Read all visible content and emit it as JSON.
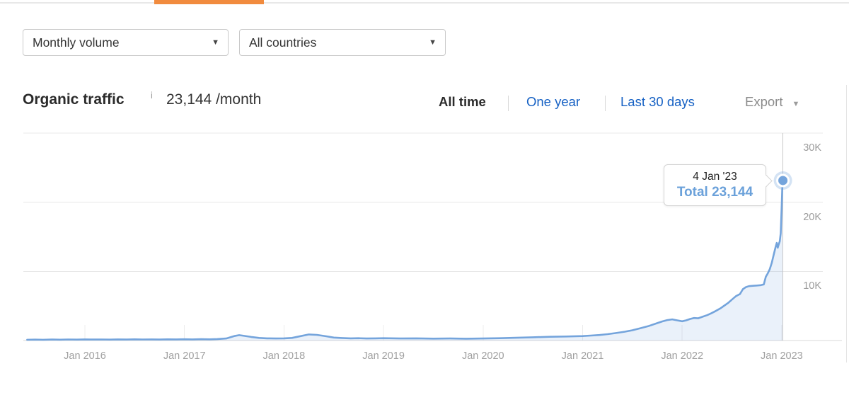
{
  "top_tab_indicator": {
    "color": "#f18b3e"
  },
  "filters": {
    "volume_dropdown": {
      "value": "Monthly volume",
      "caret": "▼"
    },
    "country_dropdown": {
      "value": "All countries",
      "caret": "▼"
    }
  },
  "header": {
    "title": "Organic traffic",
    "info": "i",
    "metric": "23,144 /month"
  },
  "range_tabs": {
    "all_time": "All time",
    "one_year": "One year",
    "last_30_days": "Last 30 days",
    "export": "Export",
    "export_caret": "▼"
  },
  "tooltip": {
    "date": "4 Jan '23",
    "total": "Total 23,144"
  },
  "chart_data": {
    "type": "area",
    "series_name": "Organic traffic total",
    "x_unit": "decimal_year",
    "ylim": [
      0,
      30000
    ],
    "grid": true,
    "legend": false,
    "line_color": "#74a4dc",
    "fill_color": "rgba(113,163,219,0.15)",
    "halo_color": "rgba(113,163,219,0.3)",
    "y_gridlines": [
      {
        "value": 30000,
        "label": "30K"
      },
      {
        "value": 20000,
        "label": "20K"
      },
      {
        "value": 10000,
        "label": "10K"
      }
    ],
    "x_ticks": [
      {
        "t": 2016,
        "label": "Jan 2016"
      },
      {
        "t": 2017,
        "label": "Jan 2017"
      },
      {
        "t": 2018,
        "label": "Jan 2018"
      },
      {
        "t": 2019,
        "label": "Jan 2019"
      },
      {
        "t": 2020,
        "label": "Jan 2020"
      },
      {
        "t": 2021,
        "label": "Jan 2021"
      },
      {
        "t": 2022,
        "label": "Jan 2022"
      },
      {
        "t": 2023,
        "label": "Jan 2023"
      }
    ],
    "highlight": {
      "t": 2023.012,
      "value": 23144,
      "date_label": "4 Jan '23"
    },
    "points": [
      [
        2015.42,
        110
      ],
      [
        2015.5,
        135
      ],
      [
        2015.58,
        115
      ],
      [
        2015.67,
        145
      ],
      [
        2015.75,
        125
      ],
      [
        2015.83,
        155
      ],
      [
        2015.92,
        135
      ],
      [
        2016.0,
        160
      ],
      [
        2016.08,
        140
      ],
      [
        2016.17,
        155
      ],
      [
        2016.25,
        135
      ],
      [
        2016.33,
        160
      ],
      [
        2016.42,
        145
      ],
      [
        2016.5,
        170
      ],
      [
        2016.58,
        150
      ],
      [
        2016.67,
        165
      ],
      [
        2016.75,
        145
      ],
      [
        2016.83,
        170
      ],
      [
        2016.92,
        160
      ],
      [
        2017.0,
        180
      ],
      [
        2017.08,
        165
      ],
      [
        2017.17,
        195
      ],
      [
        2017.25,
        175
      ],
      [
        2017.33,
        210
      ],
      [
        2017.42,
        300
      ],
      [
        2017.5,
        650
      ],
      [
        2017.55,
        780
      ],
      [
        2017.6,
        680
      ],
      [
        2017.67,
        520
      ],
      [
        2017.75,
        380
      ],
      [
        2017.83,
        320
      ],
      [
        2017.92,
        300
      ],
      [
        2018.0,
        320
      ],
      [
        2018.08,
        380
      ],
      [
        2018.17,
        650
      ],
      [
        2018.25,
        880
      ],
      [
        2018.33,
        820
      ],
      [
        2018.42,
        620
      ],
      [
        2018.5,
        430
      ],
      [
        2018.58,
        370
      ],
      [
        2018.67,
        320
      ],
      [
        2018.75,
        340
      ],
      [
        2018.83,
        300
      ],
      [
        2018.92,
        320
      ],
      [
        2019.0,
        340
      ],
      [
        2019.17,
        300
      ],
      [
        2019.33,
        320
      ],
      [
        2019.5,
        280
      ],
      [
        2019.67,
        300
      ],
      [
        2019.83,
        270
      ],
      [
        2020.0,
        300
      ],
      [
        2020.17,
        340
      ],
      [
        2020.33,
        400
      ],
      [
        2020.5,
        470
      ],
      [
        2020.67,
        540
      ],
      [
        2020.83,
        580
      ],
      [
        2021.0,
        640
      ],
      [
        2021.08,
        720
      ],
      [
        2021.17,
        800
      ],
      [
        2021.25,
        920
      ],
      [
        2021.33,
        1070
      ],
      [
        2021.42,
        1270
      ],
      [
        2021.5,
        1480
      ],
      [
        2021.58,
        1780
      ],
      [
        2021.67,
        2130
      ],
      [
        2021.75,
        2520
      ],
      [
        2021.8,
        2760
      ],
      [
        2021.85,
        2960
      ],
      [
        2021.9,
        3060
      ],
      [
        2021.95,
        2920
      ],
      [
        2022.0,
        2780
      ],
      [
        2022.04,
        2920
      ],
      [
        2022.08,
        3120
      ],
      [
        2022.12,
        3260
      ],
      [
        2022.16,
        3210
      ],
      [
        2022.2,
        3420
      ],
      [
        2022.25,
        3670
      ],
      [
        2022.29,
        3920
      ],
      [
        2022.33,
        4220
      ],
      [
        2022.38,
        4620
      ],
      [
        2022.42,
        5020
      ],
      [
        2022.46,
        5420
      ],
      [
        2022.5,
        5920
      ],
      [
        2022.54,
        6420
      ],
      [
        2022.58,
        6720
      ],
      [
        2022.61,
        7420
      ],
      [
        2022.64,
        7720
      ],
      [
        2022.67,
        7860
      ],
      [
        2022.71,
        7910
      ],
      [
        2022.75,
        7960
      ],
      [
        2022.79,
        8010
      ],
      [
        2022.82,
        8120
      ],
      [
        2022.84,
        9220
      ],
      [
        2022.86,
        9720
      ],
      [
        2022.88,
        10320
      ],
      [
        2022.9,
        11220
      ],
      [
        2022.92,
        12420
      ],
      [
        2022.94,
        13620
      ],
      [
        2022.95,
        14120
      ],
      [
        2022.96,
        13420
      ],
      [
        2022.97,
        13920
      ],
      [
        2022.98,
        14320
      ],
      [
        2022.99,
        15520
      ],
      [
        2023.0,
        19520
      ],
      [
        2023.005,
        21800
      ],
      [
        2023.012,
        23144
      ]
    ]
  }
}
